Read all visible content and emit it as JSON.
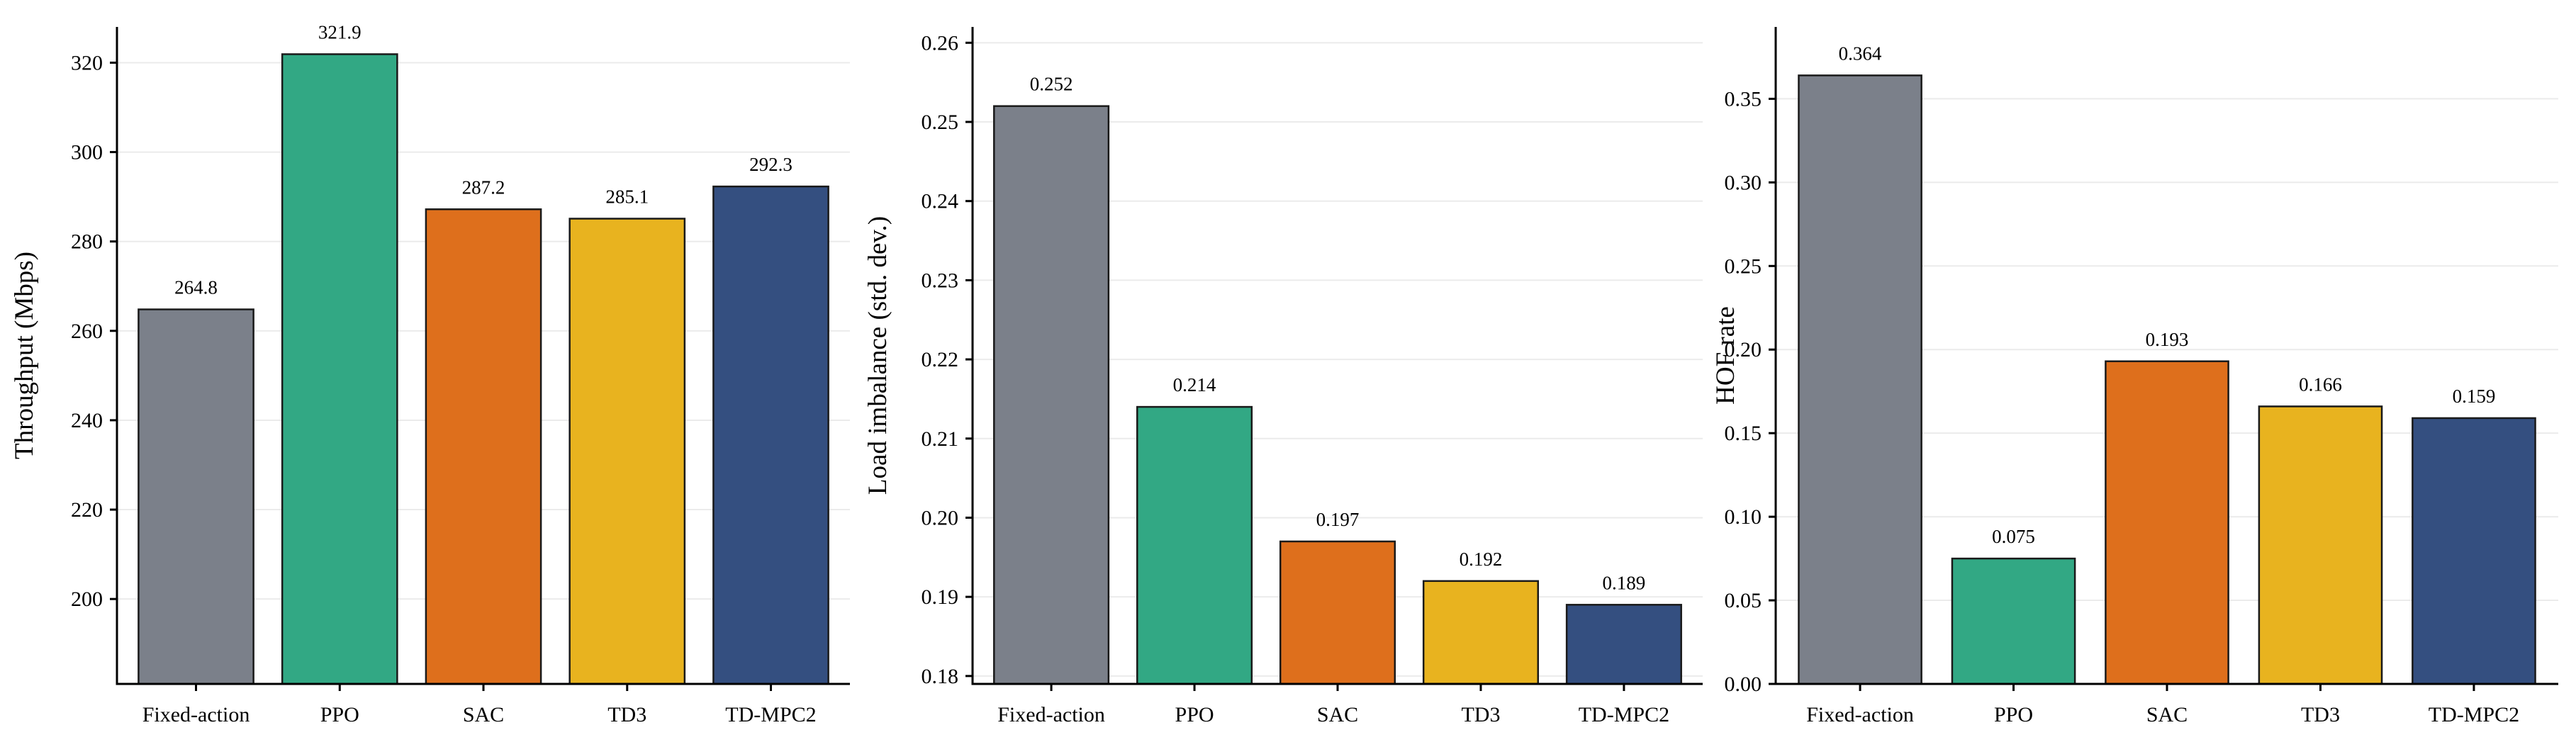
{
  "chart_data": [
    {
      "type": "bar",
      "categories": [
        "Fixed-action",
        "PPO",
        "SAC",
        "TD3",
        "TD-MPC2"
      ],
      "values": [
        264.8,
        321.9,
        287.2,
        285.1,
        292.3
      ],
      "value_labels": [
        "264.8",
        "321.9",
        "287.2",
        "285.1",
        "292.3"
      ],
      "ylabel": "Throughput (Mbps)",
      "ylim": [
        181,
        328
      ],
      "yticks": [
        200,
        220,
        240,
        260,
        280,
        300,
        320
      ],
      "ytick_labels": [
        "200",
        "220",
        "240",
        "260",
        "280",
        "300",
        "320"
      ],
      "grid": true
    },
    {
      "type": "bar",
      "categories": [
        "Fixed-action",
        "PPO",
        "SAC",
        "TD3",
        "TD-MPC2"
      ],
      "values": [
        0.252,
        0.214,
        0.197,
        0.192,
        0.189
      ],
      "value_labels": [
        "0.252",
        "0.214",
        "0.197",
        "0.192",
        "0.189"
      ],
      "ylabel": "Load imbalance (std. dev.)",
      "ylim": [
        0.179,
        0.262
      ],
      "yticks": [
        0.18,
        0.19,
        0.2,
        0.21,
        0.22,
        0.23,
        0.24,
        0.25,
        0.26
      ],
      "ytick_labels": [
        "0.18",
        "0.19",
        "0.20",
        "0.21",
        "0.22",
        "0.23",
        "0.24",
        "0.25",
        "0.26"
      ],
      "grid": true
    },
    {
      "type": "bar",
      "categories": [
        "Fixed-action",
        "PPO",
        "SAC",
        "TD3",
        "TD-MPC2"
      ],
      "values": [
        0.364,
        0.075,
        0.193,
        0.166,
        0.159
      ],
      "value_labels": [
        "0.364",
        "0.075",
        "0.193",
        "0.166",
        "0.159"
      ],
      "ylabel": "HOF rate",
      "ylim": [
        0,
        0.393
      ],
      "yticks": [
        0.0,
        0.05,
        0.1,
        0.15,
        0.2,
        0.25,
        0.3,
        0.35
      ],
      "ytick_labels": [
        "0.00",
        "0.05",
        "0.10",
        "0.15",
        "0.20",
        "0.25",
        "0.30",
        "0.35"
      ],
      "grid": true
    }
  ],
  "colors": {
    "Fixed-action": "#7b808a",
    "PPO": "#32a884",
    "SAC": "#de6f1c",
    "TD3": "#e8b31f",
    "TD-MPC2": "#344f80"
  }
}
